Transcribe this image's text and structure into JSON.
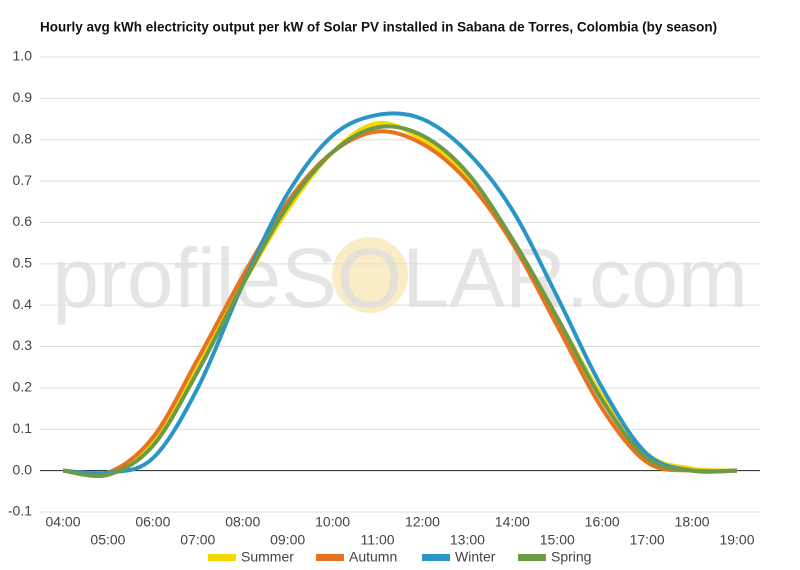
{
  "chart_data": {
    "type": "line",
    "title": "Hourly avg kWh electricity output per kW of Solar PV installed in Sabana de Torres, Colombia (by season)",
    "watermark": "profileSOLAR.com",
    "categories": [
      "04:00",
      "05:00",
      "06:00",
      "07:00",
      "08:00",
      "09:00",
      "10:00",
      "11:00",
      "12:00",
      "13:00",
      "14:00",
      "15:00",
      "16:00",
      "17:00",
      "18:00",
      "19:00"
    ],
    "series": [
      {
        "name": "Summer",
        "color": "#f5d800",
        "values": [
          0,
          -0.005,
          0.07,
          0.25,
          0.45,
          0.63,
          0.77,
          0.84,
          0.8,
          0.71,
          0.56,
          0.37,
          0.18,
          0.04,
          0.005,
          0
        ]
      },
      {
        "name": "Autumn",
        "color": "#e8731e",
        "values": [
          0,
          -0.005,
          0.08,
          0.27,
          0.47,
          0.65,
          0.77,
          0.82,
          0.79,
          0.7,
          0.55,
          0.35,
          0.15,
          0.02,
          0,
          0
        ]
      },
      {
        "name": "Winter",
        "color": "#2a96c8",
        "values": [
          0,
          -0.005,
          0.03,
          0.2,
          0.45,
          0.67,
          0.81,
          0.86,
          0.85,
          0.77,
          0.63,
          0.42,
          0.2,
          0.04,
          0,
          0
        ]
      },
      {
        "name": "Spring",
        "color": "#6d9a47",
        "values": [
          0,
          -0.01,
          0.06,
          0.24,
          0.45,
          0.64,
          0.77,
          0.83,
          0.81,
          0.72,
          0.56,
          0.37,
          0.17,
          0.03,
          0,
          0
        ]
      }
    ],
    "ylim": [
      -0.1,
      1.0
    ],
    "yticks": [
      -0.1,
      {
        "value": 0,
        "label": "0.0"
      },
      0.1,
      0.2,
      0.3,
      0.4,
      0.5,
      0.6,
      0.7,
      0.8,
      0.9,
      {
        "value": 1,
        "label": "1.0"
      }
    ],
    "grid": true,
    "legend": "bottom"
  }
}
